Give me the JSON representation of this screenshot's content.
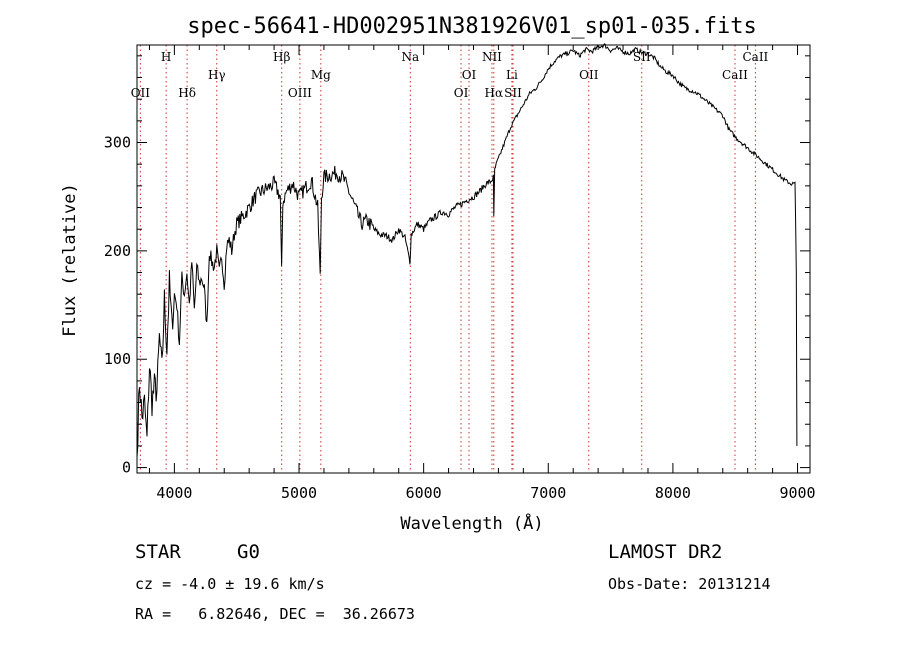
{
  "chart_data": {
    "type": "line",
    "title": "spec-56641-HD002951N381926V01_sp01-035.fits",
    "xlabel": "Wavelength (Å)",
    "ylabel": "Flux (relative)",
    "xlim": [
      3700,
      9100
    ],
    "ylim": [
      -5,
      390
    ],
    "xticks": [
      4000,
      5000,
      6000,
      7000,
      8000,
      9000
    ],
    "yticks": [
      0,
      100,
      200,
      300
    ],
    "grid": false,
    "series": [
      {
        "x": [
          3700,
          3720,
          3740,
          3760,
          3780,
          3800,
          3820,
          3840,
          3860,
          3880,
          3900,
          3920,
          3940,
          3960,
          3980,
          4000,
          4020,
          4040,
          4060,
          4080,
          4100,
          4120,
          4140,
          4160,
          4180,
          4200,
          4220,
          4240,
          4260,
          4280,
          4300,
          4320,
          4340,
          4360,
          4380,
          4400,
          4420,
          4440,
          4460,
          4480,
          4500,
          4550,
          4600,
          4650,
          4700,
          4750,
          4800,
          4850,
          4860,
          4870,
          4900,
          4950,
          5000,
          5050,
          5100,
          5150,
          5170,
          5180,
          5200,
          5250,
          5300,
          5350,
          5400,
          5450,
          5500,
          5550,
          5600,
          5650,
          5700,
          5750,
          5800,
          5850,
          5890,
          5900,
          5950,
          6000,
          6050,
          6100,
          6150,
          6200,
          6250,
          6300,
          6350,
          6400,
          6450,
          6500,
          6540,
          6560,
          6563,
          6570,
          6600,
          6650,
          6700,
          6750,
          6800,
          6850,
          6900,
          6950,
          7000,
          7050,
          7100,
          7150,
          7200,
          7250,
          7300,
          7350,
          7400,
          7450,
          7500,
          7550,
          7600,
          7650,
          7700,
          7750,
          7800,
          7850,
          7900,
          7950,
          8000,
          8050,
          8100,
          8150,
          8200,
          8250,
          8300,
          8350,
          8400,
          8450,
          8500,
          8550,
          8600,
          8650,
          8700,
          8750,
          8800,
          8850,
          8900,
          8950,
          8980,
          8990,
          8995
        ],
        "y": [
          10,
          80,
          45,
          60,
          25,
          95,
          60,
          75,
          70,
          120,
          90,
          155,
          110,
          170,
          130,
          160,
          150,
          115,
          175,
          160,
          180,
          150,
          190,
          145,
          185,
          170,
          175,
          165,
          130,
          200,
          190,
          185,
          200,
          180,
          195,
          170,
          205,
          210,
          200,
          215,
          225,
          232,
          240,
          250,
          255,
          258,
          262,
          250,
          180,
          245,
          255,
          262,
          250,
          258,
          265,
          240,
          175,
          250,
          268,
          270,
          272,
          268,
          255,
          240,
          225,
          228,
          220,
          215,
          214,
          210,
          220,
          212,
          190,
          215,
          225,
          220,
          228,
          232,
          236,
          234,
          240,
          243,
          247,
          250,
          255,
          262,
          264,
          268,
          230,
          275,
          285,
          300,
          315,
          325,
          335,
          345,
          350,
          358,
          368,
          375,
          380,
          382,
          385,
          380,
          386,
          384,
          388,
          390,
          385,
          387,
          384,
          382,
          386,
          383,
          382,
          378,
          370,
          365,
          362,
          355,
          350,
          348,
          345,
          340,
          335,
          330,
          325,
          312,
          305,
          300,
          295,
          290,
          285,
          280,
          275,
          270,
          265,
          262,
          262,
          180,
          20
        ]
      }
    ],
    "line_labels": [
      {
        "text": "OII",
        "x": 3727,
        "row": 3
      },
      {
        "text": "H",
        "x": 3934,
        "row": 1
      },
      {
        "text": "Hδ",
        "x": 4102,
        "row": 3
      },
      {
        "text": "Hγ",
        "x": 4340,
        "row": 2
      },
      {
        "text": "Hβ",
        "x": 4861,
        "row": 1
      },
      {
        "text": "OIII",
        "x": 5007,
        "row": 3
      },
      {
        "text": "Mg",
        "x": 5175,
        "row": 2
      },
      {
        "text": "Na",
        "x": 5893,
        "row": 1
      },
      {
        "text": "OI",
        "x": 6300,
        "row": 3
      },
      {
        "text": "OI",
        "x": 6364,
        "row": 2
      },
      {
        "text": "NII",
        "x": 6548,
        "row": 1
      },
      {
        "text": "Hα",
        "x": 6563,
        "row": 3
      },
      {
        "text": "Li",
        "x": 6708,
        "row": 2
      },
      {
        "text": "SII",
        "x": 6717,
        "row": 3
      },
      {
        "text": "OII",
        "x": 7325,
        "row": 2
      },
      {
        "text": "SII",
        "x": 7750,
        "row": 1
      },
      {
        "text": "CaII",
        "x": 8498,
        "row": 2
      },
      {
        "text": "CaII",
        "x": 8662,
        "row": 1
      }
    ],
    "line_marker_x": [
      3727,
      3934,
      4102,
      4340,
      4861,
      5007,
      5175,
      5893,
      6300,
      6364,
      6548,
      6563,
      6708,
      6717,
      7325,
      7750,
      8498,
      8662
    ]
  },
  "info": {
    "object_class": "STAR",
    "subclass": "G0",
    "survey": "LAMOST DR2",
    "cz": "cz = -4.0 ± 19.6 km/s",
    "obs_date": "Obs-Date: 20131214",
    "coords": "RA =   6.82646, DEC =  36.26673"
  }
}
